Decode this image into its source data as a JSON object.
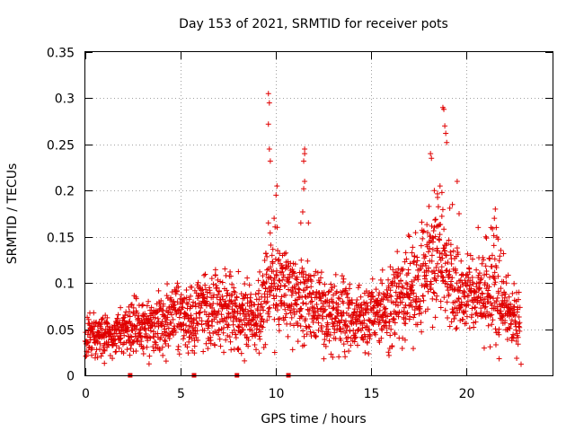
{
  "chart_data": {
    "type": "scatter",
    "title": "Day 153 of 2021, SRMTID for receiver pots",
    "xlabel": "GPS time / hours",
    "ylabel": "SRMTID / TECUs",
    "xlim": [
      0,
      24.5
    ],
    "ylim": [
      0,
      0.35
    ],
    "xticks": [
      "0",
      "5",
      "10",
      "15",
      "20"
    ],
    "yticks": [
      "0",
      "0.05",
      "0.1",
      "0.15",
      "0.2",
      "0.25",
      "0.3",
      "0.35"
    ],
    "grid": true,
    "series": [
      {
        "name": "SRMTID",
        "color": "#e00000",
        "marker": "plus",
        "baseline": [
          [
            0.0,
            0.045
          ],
          [
            0.5,
            0.042
          ],
          [
            1.0,
            0.04
          ],
          [
            1.5,
            0.042
          ],
          [
            2.0,
            0.047
          ],
          [
            2.5,
            0.055
          ],
          [
            3.0,
            0.052
          ],
          [
            3.5,
            0.055
          ],
          [
            4.0,
            0.062
          ],
          [
            4.5,
            0.066
          ],
          [
            5.0,
            0.068
          ],
          [
            5.5,
            0.06
          ],
          [
            6.0,
            0.072
          ],
          [
            6.5,
            0.07
          ],
          [
            7.0,
            0.071
          ],
          [
            7.5,
            0.074
          ],
          [
            8.0,
            0.067
          ],
          [
            8.5,
            0.068
          ],
          [
            9.0,
            0.06
          ],
          [
            9.5,
            0.09
          ],
          [
            10.0,
            0.095
          ],
          [
            10.5,
            0.09
          ],
          [
            11.0,
            0.08
          ],
          [
            11.5,
            0.085
          ],
          [
            12.0,
            0.075
          ],
          [
            12.5,
            0.07
          ],
          [
            13.0,
            0.065
          ],
          [
            13.5,
            0.062
          ],
          [
            14.0,
            0.06
          ],
          [
            14.5,
            0.062
          ],
          [
            15.0,
            0.062
          ],
          [
            15.5,
            0.068
          ],
          [
            16.0,
            0.075
          ],
          [
            16.5,
            0.085
          ],
          [
            17.0,
            0.09
          ],
          [
            17.5,
            0.1
          ],
          [
            18.0,
            0.12
          ],
          [
            18.5,
            0.13
          ],
          [
            19.0,
            0.11
          ],
          [
            19.5,
            0.09
          ],
          [
            20.0,
            0.085
          ],
          [
            20.5,
            0.085
          ],
          [
            21.0,
            0.09
          ],
          [
            21.5,
            0.1
          ],
          [
            22.0,
            0.08
          ],
          [
            22.5,
            0.06
          ],
          [
            22.8,
            0.055
          ]
        ],
        "peaks": [
          {
            "x": 9.6,
            "y": 0.305
          },
          {
            "x": 9.65,
            "y": 0.295
          },
          {
            "x": 9.6,
            "y": 0.272
          },
          {
            "x": 9.65,
            "y": 0.245
          },
          {
            "x": 9.7,
            "y": 0.232
          },
          {
            "x": 10.05,
            "y": 0.205
          },
          {
            "x": 10.0,
            "y": 0.195
          },
          {
            "x": 9.9,
            "y": 0.17
          },
          {
            "x": 9.6,
            "y": 0.165
          },
          {
            "x": 11.5,
            "y": 0.245
          },
          {
            "x": 11.5,
            "y": 0.24
          },
          {
            "x": 11.45,
            "y": 0.232
          },
          {
            "x": 11.5,
            "y": 0.21
          },
          {
            "x": 11.45,
            "y": 0.202
          },
          {
            "x": 11.4,
            "y": 0.177
          },
          {
            "x": 11.3,
            "y": 0.165
          },
          {
            "x": 11.7,
            "y": 0.165
          },
          {
            "x": 18.75,
            "y": 0.29
          },
          {
            "x": 18.8,
            "y": 0.288
          },
          {
            "x": 18.85,
            "y": 0.27
          },
          {
            "x": 18.9,
            "y": 0.262
          },
          {
            "x": 18.95,
            "y": 0.252
          },
          {
            "x": 18.1,
            "y": 0.24
          },
          {
            "x": 18.15,
            "y": 0.235
          },
          {
            "x": 18.6,
            "y": 0.205
          },
          {
            "x": 18.3,
            "y": 0.2
          },
          {
            "x": 18.7,
            "y": 0.198
          },
          {
            "x": 19.5,
            "y": 0.21
          },
          {
            "x": 19.25,
            "y": 0.185
          },
          {
            "x": 19.6,
            "y": 0.175
          },
          {
            "x": 21.5,
            "y": 0.18
          },
          {
            "x": 21.45,
            "y": 0.17
          },
          {
            "x": 21.55,
            "y": 0.16
          },
          {
            "x": 20.6,
            "y": 0.16
          },
          {
            "x": 21.0,
            "y": 0.15
          },
          {
            "x": 21.7,
            "y": 0.018
          },
          {
            "x": 22.85,
            "y": 0.012
          },
          {
            "x": 1.0,
            "y": 0.013
          }
        ],
        "zero_markers": [
          2.35,
          5.7,
          7.95,
          10.65
        ]
      }
    ]
  }
}
